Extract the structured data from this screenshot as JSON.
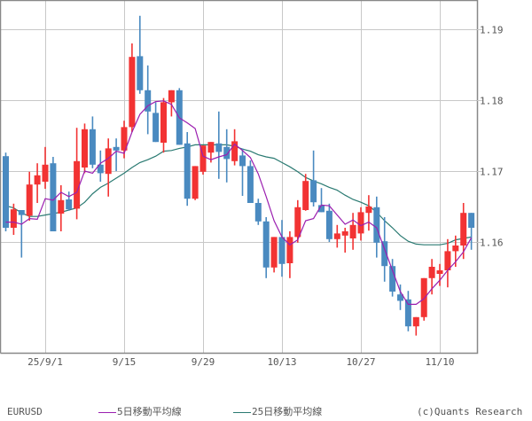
{
  "symbol": "EURUSD",
  "legend": {
    "ma5_label": "5日移動平均線",
    "ma25_label": "25日移動平均線",
    "ma5_color": "#9b1fb0",
    "ma25_color": "#2a7a72"
  },
  "copyright": "(c)Quants Research",
  "colors": {
    "up": "#f23333",
    "down": "#4a8ac0",
    "grid": "#c8c8c8",
    "axis": "#888888"
  },
  "chart_data": {
    "type": "candlestick",
    "title": "EURUSD",
    "xlabel": "",
    "ylabel": "",
    "ylim": [
      1.1453,
      1.1941
    ],
    "y_ticks": [
      1.16,
      1.17,
      1.18,
      1.19
    ],
    "y_tick_labels": [
      "1.16",
      "1.17",
      "1.18",
      "1.19"
    ],
    "x_tick_labels": [
      "25/9/1",
      "9/15",
      "9/29",
      "10/13",
      "10/27",
      "11/10"
    ],
    "x_tick_indices": [
      5,
      15,
      25,
      35,
      45,
      55
    ],
    "grid": true,
    "legend_position": "bottom",
    "series": [
      {
        "name": "5日移動平均線",
        "type": "line"
      },
      {
        "name": "25日移動平均線",
        "type": "line"
      }
    ],
    "candles": [
      {
        "o": 1.1721,
        "h": 1.1726,
        "l": 1.1615,
        "c": 1.162
      },
      {
        "o": 1.162,
        "h": 1.1654,
        "l": 1.161,
        "c": 1.1646
      },
      {
        "o": 1.1645,
        "h": 1.1645,
        "l": 1.1578,
        "c": 1.1638
      },
      {
        "o": 1.1637,
        "h": 1.1699,
        "l": 1.163,
        "c": 1.1681
      },
      {
        "o": 1.1681,
        "h": 1.1711,
        "l": 1.1655,
        "c": 1.1694
      },
      {
        "o": 1.1685,
        "h": 1.1734,
        "l": 1.1675,
        "c": 1.1709
      },
      {
        "o": 1.1711,
        "h": 1.172,
        "l": 1.1615,
        "c": 1.1615
      },
      {
        "o": 1.164,
        "h": 1.168,
        "l": 1.1615,
        "c": 1.1659
      },
      {
        "o": 1.166,
        "h": 1.1671,
        "l": 1.1644,
        "c": 1.1646
      },
      {
        "o": 1.1647,
        "h": 1.1761,
        "l": 1.1632,
        "c": 1.1714
      },
      {
        "o": 1.1705,
        "h": 1.1767,
        "l": 1.1697,
        "c": 1.1759
      },
      {
        "o": 1.1759,
        "h": 1.1777,
        "l": 1.1704,
        "c": 1.1709
      },
      {
        "o": 1.1709,
        "h": 1.1729,
        "l": 1.1685,
        "c": 1.1697
      },
      {
        "o": 1.1696,
        "h": 1.1746,
        "l": 1.1664,
        "c": 1.1732
      },
      {
        "o": 1.1734,
        "h": 1.1746,
        "l": 1.17,
        "c": 1.1729
      },
      {
        "o": 1.1729,
        "h": 1.1771,
        "l": 1.1718,
        "c": 1.1762
      },
      {
        "o": 1.1762,
        "h": 1.188,
        "l": 1.1755,
        "c": 1.1861
      },
      {
        "o": 1.1862,
        "h": 1.1919,
        "l": 1.1809,
        "c": 1.1814
      },
      {
        "o": 1.1814,
        "h": 1.1849,
        "l": 1.1752,
        "c": 1.1784
      },
      {
        "o": 1.1782,
        "h": 1.1797,
        "l": 1.1743,
        "c": 1.1741
      },
      {
        "o": 1.174,
        "h": 1.1803,
        "l": 1.1726,
        "c": 1.1797
      },
      {
        "o": 1.1797,
        "h": 1.1809,
        "l": 1.1777,
        "c": 1.1814
      },
      {
        "o": 1.1814,
        "h": 1.1817,
        "l": 1.174,
        "c": 1.1737
      },
      {
        "o": 1.1739,
        "h": 1.1755,
        "l": 1.1651,
        "c": 1.1661
      },
      {
        "o": 1.1661,
        "h": 1.1706,
        "l": 1.1659,
        "c": 1.1707
      },
      {
        "o": 1.1699,
        "h": 1.1719,
        "l": 1.1695,
        "c": 1.1736
      },
      {
        "o": 1.1726,
        "h": 1.174,
        "l": 1.1712,
        "c": 1.1741
      },
      {
        "o": 1.1739,
        "h": 1.1784,
        "l": 1.1689,
        "c": 1.1727
      },
      {
        "o": 1.1734,
        "h": 1.1759,
        "l": 1.1684,
        "c": 1.1717
      },
      {
        "o": 1.1714,
        "h": 1.1759,
        "l": 1.1708,
        "c": 1.1742
      },
      {
        "o": 1.1722,
        "h": 1.1732,
        "l": 1.1665,
        "c": 1.1707
      },
      {
        "o": 1.1707,
        "h": 1.1715,
        "l": 1.1659,
        "c": 1.1655
      },
      {
        "o": 1.1655,
        "h": 1.1661,
        "l": 1.1624,
        "c": 1.1629
      },
      {
        "o": 1.1629,
        "h": 1.1635,
        "l": 1.1549,
        "c": 1.1564
      },
      {
        "o": 1.1564,
        "h": 1.1586,
        "l": 1.1557,
        "c": 1.1607
      },
      {
        "o": 1.1607,
        "h": 1.1631,
        "l": 1.1551,
        "c": 1.1569
      },
      {
        "o": 1.157,
        "h": 1.1615,
        "l": 1.1549,
        "c": 1.1607
      },
      {
        "o": 1.1607,
        "h": 1.1659,
        "l": 1.1599,
        "c": 1.1649
      },
      {
        "o": 1.1645,
        "h": 1.1696,
        "l": 1.1644,
        "c": 1.1686
      },
      {
        "o": 1.1687,
        "h": 1.1729,
        "l": 1.165,
        "c": 1.1656
      },
      {
        "o": 1.1652,
        "h": 1.1676,
        "l": 1.1647,
        "c": 1.1642
      },
      {
        "o": 1.1644,
        "h": 1.1654,
        "l": 1.16,
        "c": 1.1604
      },
      {
        "o": 1.1604,
        "h": 1.1624,
        "l": 1.1592,
        "c": 1.1612
      },
      {
        "o": 1.1609,
        "h": 1.162,
        "l": 1.1585,
        "c": 1.1615
      },
      {
        "o": 1.1605,
        "h": 1.1641,
        "l": 1.1589,
        "c": 1.1624
      },
      {
        "o": 1.1612,
        "h": 1.1649,
        "l": 1.1602,
        "c": 1.1642
      },
      {
        "o": 1.1641,
        "h": 1.1666,
        "l": 1.1616,
        "c": 1.165
      },
      {
        "o": 1.1649,
        "h": 1.1664,
        "l": 1.1578,
        "c": 1.1599
      },
      {
        "o": 1.1601,
        "h": 1.1635,
        "l": 1.1544,
        "c": 1.1566
      },
      {
        "o": 1.1566,
        "h": 1.1576,
        "l": 1.1523,
        "c": 1.153
      },
      {
        "o": 1.1526,
        "h": 1.154,
        "l": 1.1504,
        "c": 1.1517
      },
      {
        "o": 1.1519,
        "h": 1.1531,
        "l": 1.1474,
        "c": 1.1481
      },
      {
        "o": 1.1481,
        "h": 1.1485,
        "l": 1.1468,
        "c": 1.1494
      },
      {
        "o": 1.1494,
        "h": 1.154,
        "l": 1.1489,
        "c": 1.1549
      },
      {
        "o": 1.1549,
        "h": 1.1576,
        "l": 1.1526,
        "c": 1.1565
      },
      {
        "o": 1.1555,
        "h": 1.1569,
        "l": 1.1538,
        "c": 1.156
      },
      {
        "o": 1.156,
        "h": 1.1604,
        "l": 1.1536,
        "c": 1.1587
      },
      {
        "o": 1.1587,
        "h": 1.1609,
        "l": 1.1565,
        "c": 1.1595
      },
      {
        "o": 1.1595,
        "h": 1.1655,
        "l": 1.1576,
        "c": 1.1641
      },
      {
        "o": 1.1641,
        "h": 1.164,
        "l": 1.1589,
        "c": 1.162
      }
    ],
    "ma5_values_approx": [
      1.1628,
      1.1628,
      1.1625,
      1.1633,
      1.1632,
      1.1661,
      1.1659,
      1.167,
      1.1664,
      1.167,
      1.17,
      1.1697,
      1.1711,
      1.1718,
      1.1728,
      1.1725,
      1.1755,
      1.178,
      1.1792,
      1.1798,
      1.1799,
      1.1794,
      1.1775,
      1.1768,
      1.176,
      1.1721,
      1.1716,
      1.172,
      1.1723,
      1.1738,
      1.1729,
      1.1719,
      1.1696,
      1.1664,
      1.163,
      1.1607,
      1.1596,
      1.1603,
      1.163,
      1.1633,
      1.1652,
      1.1651,
      1.1638,
      1.1625,
      1.1631,
      1.1623,
      1.1628,
      1.162,
      1.159,
      1.156,
      1.153,
      1.1512,
      1.1512,
      1.152,
      1.1534,
      1.1546,
      1.156,
      1.1572,
      1.1586,
      1.1606
    ],
    "ma25_values_approx": [
      1.1651,
      1.1648,
      1.1641,
      1.1636,
      1.1636,
      1.1638,
      1.164,
      1.1642,
      1.1645,
      1.1648,
      1.1656,
      1.1668,
      1.1677,
      1.1683,
      1.169,
      1.1697,
      1.1705,
      1.1712,
      1.1716,
      1.1721,
      1.1728,
      1.1729,
      1.1732,
      1.1734,
      1.1737,
      1.1737,
      1.1737,
      1.1737,
      1.1737,
      1.1735,
      1.1731,
      1.1728,
      1.1723,
      1.172,
      1.1718,
      1.1712,
      1.1706,
      1.1699,
      1.1691,
      1.1686,
      1.1682,
      1.1677,
      1.1673,
      1.1666,
      1.166,
      1.1656,
      1.1651,
      1.1642,
      1.163,
      1.162,
      1.1609,
      1.1601,
      1.1597,
      1.1596,
      1.1596,
      1.1596,
      1.1598,
      1.1603,
      1.1605,
      1.1607
    ]
  }
}
